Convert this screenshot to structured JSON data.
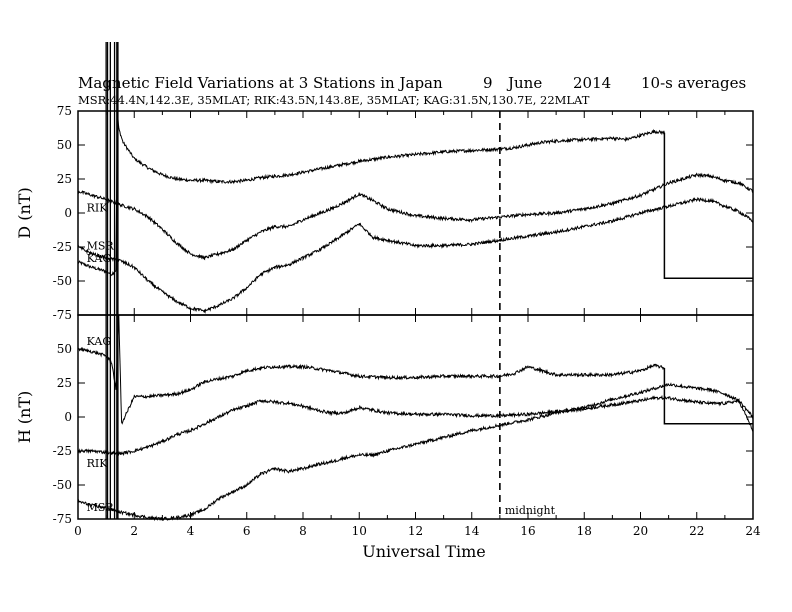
{
  "chart_data": {
    "type": "line",
    "title": "Magnetic Field Variations at 3 Stations in Japan",
    "date": {
      "day": "9",
      "month": "June",
      "year": "2014"
    },
    "averaging": "10-s averages",
    "stations_line": "MSR:44.4N,142.3E, 35MLAT;   RIK:43.5N,143.8E, 35MLAT;   KAG:31.5N,130.7E, 22MLAT",
    "xlabel": "Universal Time",
    "xlim": [
      0,
      24
    ],
    "xticks": [
      "0",
      "2",
      "4",
      "6",
      "8",
      "10",
      "12",
      "14",
      "16",
      "18",
      "20",
      "22",
      "24"
    ],
    "midnight_label": "midnight",
    "midnight_ut": 15,
    "grid": false,
    "panels": [
      {
        "id": "D",
        "ylabel": "D (nT)",
        "ylim": [
          -75,
          75
        ],
        "yticks": [
          "75",
          "50",
          "25",
          "0",
          "-25",
          "-50",
          "-75"
        ],
        "series": [
          {
            "name": "MSR",
            "label": "MSR",
            "label_ut": 0.2,
            "label_value": -24,
            "x": [
              0,
              0.5,
              1,
              1.2,
              1.35,
              1.4,
              1.45,
              1.6,
              2,
              2.5,
              3,
              3.5,
              4,
              4.5,
              5,
              5.5,
              6,
              6.5,
              7,
              7.5,
              8,
              9,
              10,
              11,
              12,
              13,
              14,
              15,
              15.5,
              16,
              16.5,
              17,
              18,
              19,
              19.5,
              20,
              20.5,
              20.85
            ],
            "y": [
              -36,
              -40,
              -43,
              -45,
              -42,
              75,
              62,
              52,
              40,
              33,
              28,
              25,
              24,
              24,
              23,
              23,
              24,
              26,
              27,
              28,
              30,
              34,
              38,
              41,
              43,
              45,
              46,
              47,
              48,
              50,
              52,
              53,
              54,
              55,
              54,
              57,
              60,
              59
            ]
          },
          {
            "name": "RIK",
            "label": "RIK",
            "label_ut": 0.2,
            "label_value": 4,
            "x": [
              0,
              0.5,
              1,
              1.5,
              2,
              2.5,
              3,
              3.5,
              4,
              4.5,
              5,
              5.5,
              6,
              6.5,
              7,
              7.5,
              8,
              8.5,
              9,
              9.5,
              10,
              10.5,
              11,
              12,
              13,
              14,
              15,
              16,
              17,
              18,
              19,
              20,
              21,
              22,
              22.5,
              23,
              23.5,
              24
            ],
            "y": [
              16,
              13,
              10,
              6,
              3,
              -3,
              -12,
              -22,
              -30,
              -33,
              -30,
              -27,
              -20,
              -14,
              -10,
              -10,
              -5,
              -1,
              3,
              8,
              14,
              9,
              3,
              -2,
              -4,
              -5,
              -3,
              -1,
              0,
              3,
              7,
              13,
              22,
              28,
              27,
              24,
              22,
              16
            ]
          },
          {
            "name": "KAG",
            "label": "KAG",
            "label_ut": 0.2,
            "label_value": -33,
            "x": [
              0,
              0.5,
              1,
              1.5,
              2,
              2.5,
              3,
              3.5,
              4,
              4.5,
              5,
              5.5,
              6,
              6.5,
              7,
              7.5,
              8,
              8.5,
              9,
              9.5,
              10,
              10.5,
              11,
              12,
              13,
              14,
              15,
              16,
              17,
              18,
              19,
              20,
              21,
              22,
              22.5,
              23,
              23.5,
              24
            ],
            "y": [
              -25,
              -30,
              -33,
              -35,
              -40,
              -50,
              -58,
              -65,
              -70,
              -72,
              -68,
              -63,
              -55,
              -45,
              -40,
              -38,
              -33,
              -28,
              -22,
              -15,
              -8,
              -18,
              -20,
              -24,
              -24,
              -23,
              -20,
              -17,
              -14,
              -10,
              -6,
              0,
              5,
              10,
              9,
              5,
              1,
              -6
            ]
          }
        ]
      },
      {
        "id": "H",
        "ylabel": "H (nT)",
        "ylim": [
          -75,
          75
        ],
        "yticks": [
          "75",
          "50",
          "25",
          "0",
          "-25",
          "-50",
          "-75"
        ],
        "series": [
          {
            "name": "KAG",
            "label": "KAG",
            "label_ut": 0.2,
            "label_value": 56,
            "x": [
              0,
              0.5,
              1,
              1.2,
              1.35,
              1.45,
              1.55,
              2,
              2.5,
              3,
              3.5,
              4,
              4.5,
              5,
              5.5,
              6,
              6.5,
              7,
              7.5,
              8,
              9,
              10,
              11,
              12,
              13,
              14,
              15,
              15.5,
              16,
              16.5,
              17,
              18,
              19,
              20,
              20.5,
              20.85
            ],
            "y": [
              50,
              48,
              45,
              40,
              20,
              75,
              -5,
              15,
              15,
              16,
              17,
              20,
              26,
              28,
              30,
              34,
              36,
              37,
              37,
              37,
              34,
              30,
              29,
              29,
              30,
              30,
              30,
              32,
              37,
              34,
              31,
              31,
              31,
              34,
              38,
              36
            ]
          },
          {
            "name": "RIK",
            "label": "RIK",
            "label_ut": 0.2,
            "label_value": -34,
            "x": [
              0,
              0.5,
              1,
              1.5,
              2,
              2.5,
              3,
              3.5,
              4,
              4.5,
              5,
              5.5,
              6,
              6.5,
              7,
              7.5,
              8,
              8.5,
              9,
              9.5,
              10,
              10.5,
              11,
              12,
              13,
              14,
              15,
              16,
              17,
              18,
              19,
              20,
              20.5,
              21,
              22,
              22.5,
              23,
              23.5,
              24
            ],
            "y": [
              -25,
              -25,
              -26,
              -27,
              -25,
              -22,
              -18,
              -13,
              -10,
              -5,
              0,
              5,
              8,
              12,
              11,
              10,
              8,
              5,
              3,
              3,
              7,
              5,
              3,
              2,
              2,
              1,
              1,
              2,
              4,
              6,
              9,
              12,
              14,
              14,
              11,
              10,
              10,
              12,
              -10
            ]
          },
          {
            "name": "MSR",
            "label": "MSR",
            "label_ut": 0.2,
            "label_value": -66,
            "x": [
              0,
              0.5,
              1,
              1.5,
              2,
              2.5,
              3,
              3.5,
              4,
              4.5,
              5,
              5.5,
              6,
              6.5,
              7,
              7.5,
              8,
              8.5,
              9,
              9.5,
              10,
              10.5,
              11,
              12,
              13,
              14,
              15,
              16,
              17,
              18,
              19,
              20,
              21,
              22,
              22.5,
              23,
              23.5,
              24
            ],
            "y": [
              -62,
              -65,
              -67,
              -70,
              -72,
              -74,
              -75,
              -74,
              -72,
              -68,
              -60,
              -55,
              -50,
              -42,
              -38,
              -40,
              -38,
              -35,
              -33,
              -30,
              -28,
              -28,
              -25,
              -20,
              -15,
              -10,
              -6,
              -2,
              3,
              7,
              13,
              18,
              24,
              21,
              20,
              17,
              12,
              0
            ]
          }
        ],
        "spike_note": "Vertical lines near UT 1.0–1.45 mark rapid disturbances spanning both panels"
      }
    ]
  }
}
